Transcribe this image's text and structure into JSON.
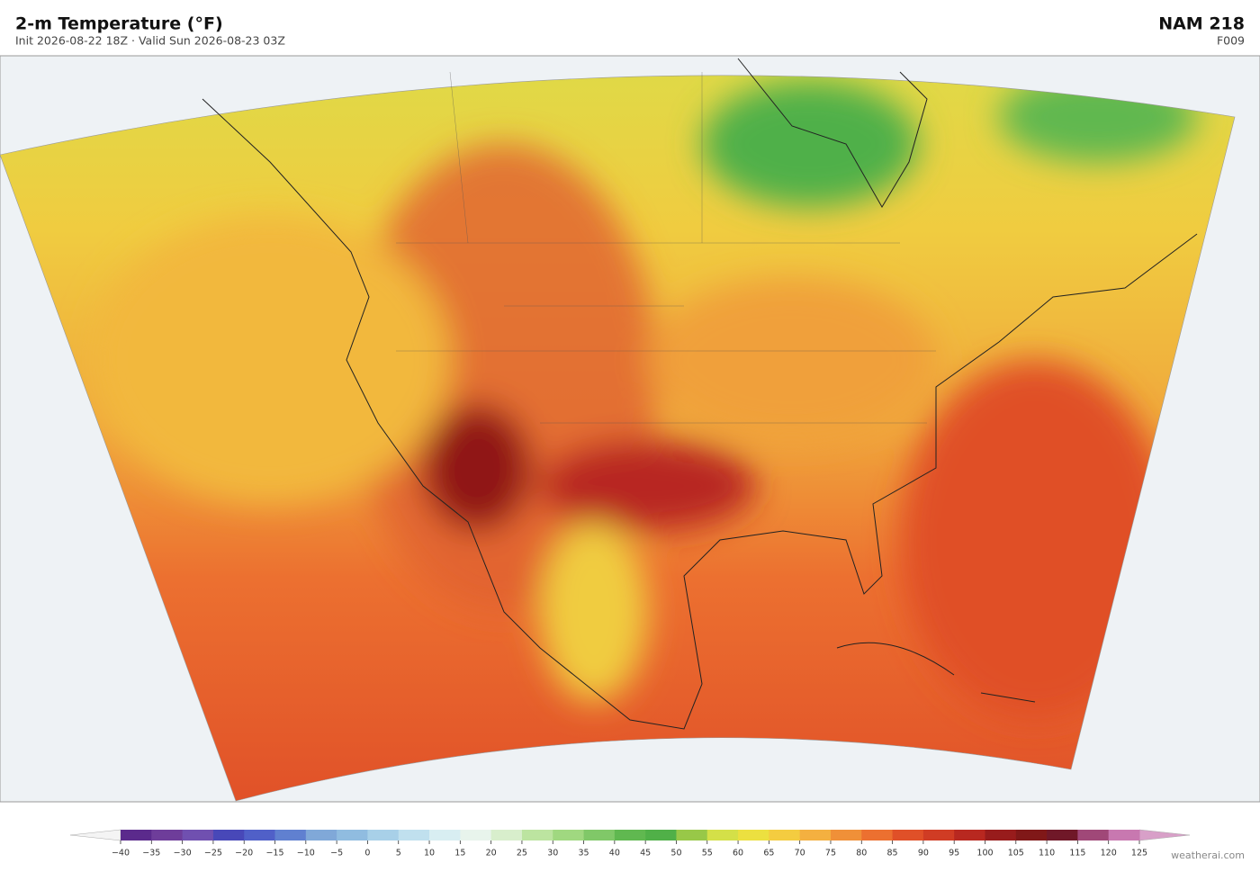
{
  "header": {
    "title": "2-m Temperature  (°F)",
    "subtitle": "Init 2026-08-22 18Z  ·  Valid Sun 2026-08-23 03Z",
    "model": "NAM  218",
    "forecast_hour": "F009"
  },
  "colorbar": {
    "clim": [
      -40,
      125
    ],
    "ticks": [
      {
        "value": -40,
        "label": "−40"
      },
      {
        "value": -35,
        "label": "−35"
      },
      {
        "value": -30,
        "label": "−30"
      },
      {
        "value": -25,
        "label": "−25"
      },
      {
        "value": -20,
        "label": "−20"
      },
      {
        "value": -15,
        "label": "−15"
      },
      {
        "value": -10,
        "label": "−10"
      },
      {
        "value": -5,
        "label": "−5"
      },
      0,
      5,
      10,
      15,
      20,
      25,
      30,
      35,
      40,
      45,
      50,
      55,
      60,
      65,
      70,
      75,
      80,
      85,
      90,
      95,
      100,
      105,
      110,
      115,
      120,
      125
    ],
    "colors": [
      "#5b2a8c",
      "#6e3d9a",
      "#7050b0",
      "#4848b8",
      "#5060c8",
      "#6080d0",
      "#80a8d8",
      "#90bce0",
      "#a8d0e8",
      "#c0e0ee",
      "#d8eef2",
      "#e8f4ec",
      "#d8eecc",
      "#bce4a0",
      "#a0d880",
      "#80c868",
      "#60b850",
      "#50b048",
      "#98c848",
      "#d4e048",
      "#ece040",
      "#f4cc40",
      "#f4b040",
      "#f09038",
      "#ec7030",
      "#e05028",
      "#d03c24",
      "#b82820",
      "#981c1c",
      "#801818",
      "#701828",
      "#a04878",
      "#c878b0"
    ],
    "under_color": "#f4f4f4",
    "over_color": "#d8a0c8"
  },
  "credit": "weatherai.com"
}
